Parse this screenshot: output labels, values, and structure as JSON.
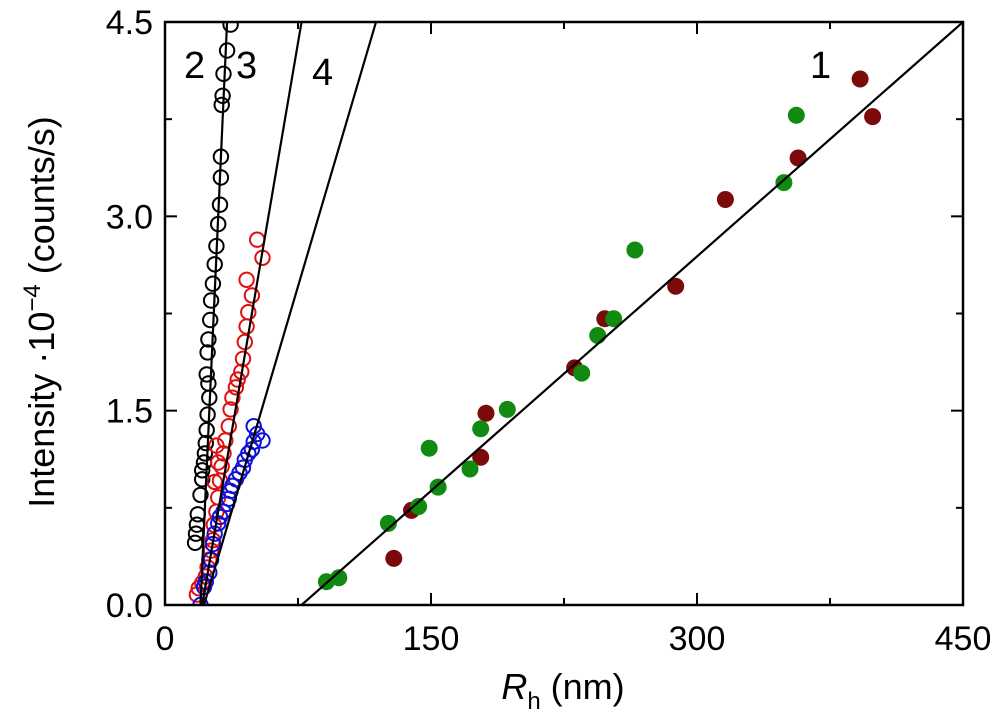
{
  "chart_data": {
    "type": "scatter",
    "title": "",
    "xlabel_main": "R",
    "xlabel_sub": "h",
    "xlabel_unit": " (nm)",
    "ylabel_main": "Intensity ·10",
    "ylabel_sup": "−4",
    "ylabel_unit": " (counts/s)",
    "xlim": [
      0,
      450
    ],
    "ylim": [
      0,
      4.5
    ],
    "xticks": [
      0,
      150,
      300,
      450
    ],
    "xtick_labels": [
      "0",
      "150",
      "300",
      "450"
    ],
    "yticks": [
      0,
      1.5,
      3.0,
      4.5
    ],
    "ytick_labels": [
      "0.0",
      "1.5",
      "3.0",
      "4.5"
    ],
    "series": [
      {
        "name": "1 (dark red)",
        "marker": "filled-circle",
        "color": "#7b0a0a",
        "points": [
          [
            129,
            0.36
          ],
          [
            139,
            0.73
          ],
          [
            178,
            1.14
          ],
          [
            181,
            1.48
          ],
          [
            231,
            1.83
          ],
          [
            248,
            2.21
          ],
          [
            288,
            2.46
          ],
          [
            316,
            3.13
          ],
          [
            357,
            3.45
          ],
          [
            392,
            4.06
          ],
          [
            399,
            3.77
          ]
        ]
      },
      {
        "name": "1 (green)",
        "marker": "filled-circle",
        "color": "#108a10",
        "points": [
          [
            91,
            0.18
          ],
          [
            98,
            0.21
          ],
          [
            126,
            0.63
          ],
          [
            143,
            0.76
          ],
          [
            149,
            1.21
          ],
          [
            154,
            0.91
          ],
          [
            172,
            1.05
          ],
          [
            178,
            1.36
          ],
          [
            193,
            1.51
          ],
          [
            235,
            1.79
          ],
          [
            244,
            2.08
          ],
          [
            253,
            2.21
          ],
          [
            265,
            2.74
          ],
          [
            349,
            3.26
          ],
          [
            356,
            3.78
          ]
        ]
      },
      {
        "name": "2",
        "marker": "open-circle",
        "color": "#000000",
        "points": [
          [
            17,
            0.48
          ],
          [
            17.5,
            0.55
          ],
          [
            18,
            0.62
          ],
          [
            18.5,
            0.7
          ],
          [
            20,
            0.85
          ],
          [
            21,
            0.97
          ],
          [
            21,
            1.04
          ],
          [
            22,
            1.1
          ],
          [
            22.5,
            1.17
          ],
          [
            23,
            1.25
          ],
          [
            23.5,
            1.35
          ],
          [
            24,
            1.47
          ],
          [
            25,
            1.6
          ],
          [
            24.5,
            1.71
          ],
          [
            23.5,
            1.78
          ],
          [
            24,
            1.95
          ],
          [
            24.5,
            2.05
          ],
          [
            25.5,
            2.2
          ],
          [
            26,
            2.35
          ],
          [
            27,
            2.48
          ],
          [
            28,
            2.63
          ],
          [
            29,
            2.77
          ],
          [
            30,
            2.94
          ],
          [
            31,
            3.09
          ],
          [
            31.5,
            3.3
          ],
          [
            31.5,
            3.46
          ],
          [
            32,
            3.86
          ],
          [
            32.5,
            3.93
          ],
          [
            33,
            4.1
          ],
          [
            35,
            4.28
          ],
          [
            37,
            4.48
          ]
        ]
      },
      {
        "name": "3",
        "marker": "open-circle",
        "color": "#e01010",
        "points": [
          [
            18,
            0.08
          ],
          [
            19,
            0.13
          ],
          [
            21,
            0.17
          ],
          [
            23,
            0.22
          ],
          [
            24,
            0.29
          ],
          [
            25,
            0.35
          ],
          [
            26,
            0.42
          ],
          [
            27,
            0.5
          ],
          [
            27.5,
            0.62
          ],
          [
            29,
            0.72
          ],
          [
            30,
            0.83
          ],
          [
            31,
            0.96
          ],
          [
            32,
            1.07
          ],
          [
            33,
            1.17
          ],
          [
            34,
            1.27
          ],
          [
            36,
            1.38
          ],
          [
            37,
            1.51
          ],
          [
            38,
            1.6
          ],
          [
            40,
            1.68
          ],
          [
            41,
            1.74
          ],
          [
            43,
            1.8
          ],
          [
            44,
            1.9
          ],
          [
            45,
            2.03
          ],
          [
            46,
            2.15
          ],
          [
            47,
            2.26
          ],
          [
            49,
            2.39
          ],
          [
            46,
            2.51
          ],
          [
            55,
            2.68
          ],
          [
            52,
            2.82
          ],
          [
            30,
            1.1
          ],
          [
            29,
            1.23
          ],
          [
            28,
            0.95
          ]
        ]
      },
      {
        "name": "4",
        "marker": "open-circle",
        "color": "#1010d8",
        "points": [
          [
            20,
            0.0
          ],
          [
            22,
            0.14
          ],
          [
            23,
            0.18
          ],
          [
            25,
            0.25
          ],
          [
            26,
            0.35
          ],
          [
            27,
            0.47
          ],
          [
            28,
            0.55
          ],
          [
            30,
            0.63
          ],
          [
            31,
            0.68
          ],
          [
            33,
            0.72
          ],
          [
            35,
            0.78
          ],
          [
            36,
            0.82
          ],
          [
            37,
            0.88
          ],
          [
            38,
            0.92
          ],
          [
            40,
            0.97
          ],
          [
            42,
            1.02
          ],
          [
            44,
            1.06
          ],
          [
            45,
            1.12
          ],
          [
            47,
            1.17
          ],
          [
            49,
            1.2
          ],
          [
            50,
            1.26
          ],
          [
            52,
            1.32
          ],
          [
            55,
            1.27
          ],
          [
            50,
            1.38
          ]
        ]
      }
    ],
    "fit_lines": [
      {
        "name": "1",
        "x": [
          77,
          450
        ],
        "y": [
          0,
          4.5
        ]
      },
      {
        "name": "2",
        "x": [
          20,
          35
        ],
        "y": [
          0,
          4.5
        ]
      },
      {
        "name": "3",
        "x": [
          21,
          77
        ],
        "y": [
          0,
          4.5
        ]
      },
      {
        "name": "4",
        "x": [
          22,
          119
        ],
        "y": [
          0,
          4.5
        ]
      }
    ],
    "curve_labels": [
      "2",
      "3",
      "4",
      "1"
    ]
  }
}
